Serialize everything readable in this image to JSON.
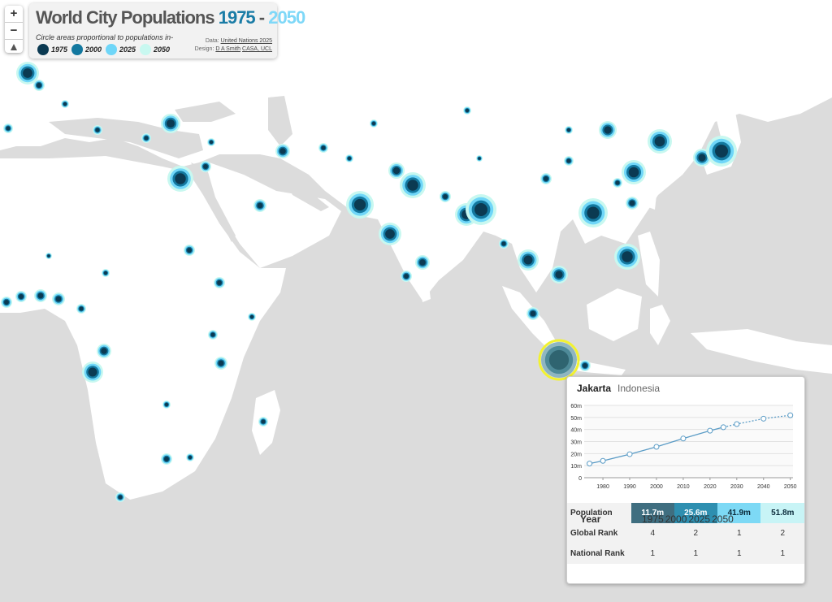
{
  "header": {
    "title": "World City Populations",
    "title_start": "1975",
    "title_sep": "-",
    "title_end": "2050",
    "title_start_color": "#1a7ca6",
    "title_end_color": "#7fd8f8",
    "subtitle": "Circle areas proportional to populations in-",
    "legend": [
      {
        "label": "1975",
        "color": "#0b3a52"
      },
      {
        "label": "2000",
        "color": "#13789f"
      },
      {
        "label": "2025",
        "color": "#6fd6f8"
      },
      {
        "label": "2050",
        "color": "#c8f8f0"
      }
    ],
    "credits": {
      "data_label": "Data:",
      "data_source": "United Nations 2025",
      "design_label": "Design:",
      "designer": "D A Smith",
      "institution": "CASA, UCL"
    }
  },
  "zoom": {
    "in": "+",
    "out": "−"
  },
  "popup": {
    "city": "Jakarta",
    "country": "Indonesia",
    "chart_data": {
      "type": "line",
      "x": [
        1975,
        1980,
        1990,
        2000,
        2010,
        2020,
        2025,
        2030,
        2040,
        2050
      ],
      "series": [
        {
          "name": "Population",
          "color": "#5b9cc6",
          "values": [
            11.7,
            14,
            19.5,
            25.6,
            32.5,
            39,
            41.9,
            44.5,
            49,
            51.8
          ]
        }
      ],
      "projection_from": 2025,
      "xlim": [
        1973,
        2051
      ],
      "xticks": [
        1980,
        1990,
        2000,
        2010,
        2020,
        2030,
        2040,
        2050
      ],
      "ylim": [
        0,
        60
      ],
      "yticks": [
        0,
        {
          "value": 10,
          "label": "10m"
        },
        {
          "value": 20,
          "label": "20m"
        },
        {
          "value": 30,
          "label": "30m"
        },
        {
          "value": 40,
          "label": "40m"
        },
        {
          "value": 50,
          "label": "50m"
        },
        {
          "value": 60,
          "label": "60m"
        }
      ],
      "grid": true
    },
    "table": {
      "header": [
        "Year",
        "1975",
        "2000",
        "2025",
        "2050"
      ],
      "rows": [
        [
          "Population",
          "11.7m",
          "25.6m",
          "41.9m",
          "51.8m"
        ],
        [
          "Global Rank",
          "4",
          "2",
          "1",
          "2"
        ],
        [
          "National Rank",
          "1",
          "1",
          "1",
          "1"
        ]
      ],
      "population_cell_colors": [
        "#3f6e80",
        "#2e8fb0",
        "#7dd9f5",
        "#c8f4f6"
      ],
      "population_text_colors": [
        "#ffffff",
        "#ffffff",
        "#0b2a3a",
        "#0b2a3a"
      ]
    }
  }
}
